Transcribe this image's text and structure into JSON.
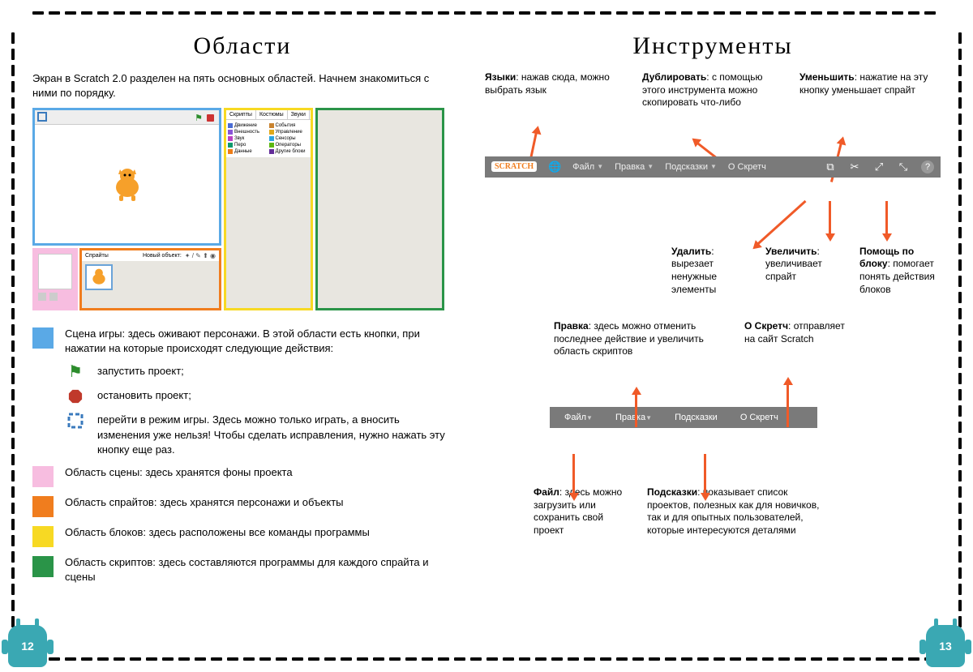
{
  "pageLeft": {
    "title": "Области",
    "intro": "Экран в Scratch 2.0 разделен на пять основных областей. Начнем знакомиться с ними по порядку.",
    "tabs": {
      "scripts": "Скрипты",
      "costumes": "Костюмы",
      "sounds": "Звуки"
    },
    "palette": [
      {
        "c": "#4a6cd4",
        "t": "Движение"
      },
      {
        "c": "#c88330",
        "t": "События"
      },
      {
        "c": "#8a55d7",
        "t": "Внешность"
      },
      {
        "c": "#e1a91a",
        "t": "Управление"
      },
      {
        "c": "#bb42c3",
        "t": "Звук"
      },
      {
        "c": "#2ca5e2",
        "t": "Сенсоры"
      },
      {
        "c": "#0e9a6c",
        "t": "Перо"
      },
      {
        "c": "#5cb712",
        "t": "Операторы"
      },
      {
        "c": "#ee7d16",
        "t": "Данные"
      },
      {
        "c": "#632d99",
        "t": "Другие блоки"
      }
    ],
    "spriteHdr": "Спрайты",
    "spriteNew": "Новый объект:",
    "legend": {
      "stage": "Сцена игры: здесь оживают персонажи. В этой области есть кнопки, при нажатии на которые происходят следующие действия:",
      "flag": "запустить проект;",
      "stop": "остановить проект;",
      "full": "перейти в режим игры. Здесь можно только играть, а вносить изменения уже нельзя! Чтобы сделать исправления, нужно нажать эту кнопку еще раз.",
      "scene": "Область сцены: здесь хранятся фоны проекта",
      "sprites": "Область спрайтов: здесь хранятся персонажи и объекты",
      "blocks": "Область блоков: здесь расположены все команды программы",
      "scripts": "Область скриптов: здесь составляются программы для каждого спрайта и сцены"
    },
    "colors": {
      "stage": "#5aa9e6",
      "scene": "#f7bde0",
      "sprites": "#f07d1e",
      "blocks": "#f7d923",
      "scripts": "#2a9448"
    },
    "pageNum": "12"
  },
  "pageRight": {
    "title": "Инструменты",
    "toolbar": {
      "logo": "SCRATCH",
      "file": "Файл",
      "edit": "Правка",
      "tips": "Подсказки",
      "about": "О Скретч"
    },
    "callTop": {
      "lang": {
        "h": "Языки",
        "t": ": нажав сюда, можно выбрать язык"
      },
      "dup": {
        "h": "Дублировать",
        "t": ": с помощью этого инструмента можно скопировать что-либо"
      },
      "shrink": {
        "h": "Уменьшить",
        "t": ": нажатие на эту кнопку уменьшает спрайт"
      }
    },
    "callMid": {
      "del": {
        "h": "Удалить",
        "t": ": вырезает ненужные элементы"
      },
      "grow": {
        "h": "Увеличить",
        "t": ": увеличивает спрайт"
      },
      "help": {
        "h": "Помощь по блоку",
        "t": ": помогает понять действия блоков"
      }
    },
    "callLow": {
      "edit": {
        "h": "Правка",
        "t": ": здесь можно отменить последнее действие и увеличить область скриптов"
      },
      "about": {
        "h": "О Скретч",
        "t": ": отправляет на сайт Scratch"
      },
      "file": {
        "h": "Файл",
        "t": ": здесь можно загрузить или сохранить свой проект"
      },
      "tips": {
        "h": "Подсказки",
        "t": ": показывает список проектов, полезных как для новичков, так и для опытных пользователей, которые интересуются деталями"
      }
    },
    "arrowColor": "#f05a28",
    "pageNum": "13"
  }
}
